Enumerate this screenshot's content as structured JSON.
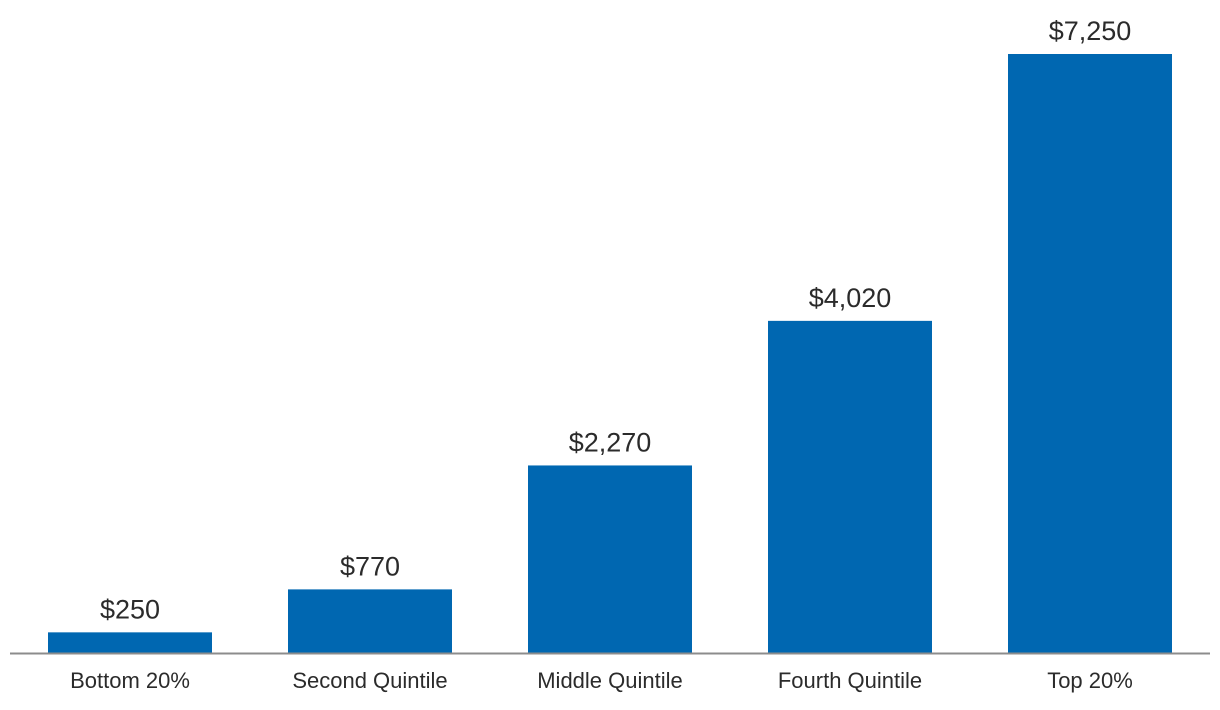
{
  "chart_data": {
    "type": "bar",
    "title": "",
    "xlabel": "",
    "ylabel": "",
    "categories": [
      "Bottom 20%",
      "Second Quintile",
      "Middle Quintile",
      "Fourth Quintile",
      "Top 20%"
    ],
    "values": [
      250,
      770,
      2270,
      4020,
      7250
    ],
    "data_labels": [
      "$250",
      "$770",
      "$2,270",
      "$4,020",
      "$7,250"
    ],
    "ylim": [
      0,
      7250
    ],
    "grid": false,
    "legend": "none",
    "colors": {
      "bar": "#0067b1",
      "axis": "#8c8c8c",
      "text": "#2b2b2b"
    }
  }
}
